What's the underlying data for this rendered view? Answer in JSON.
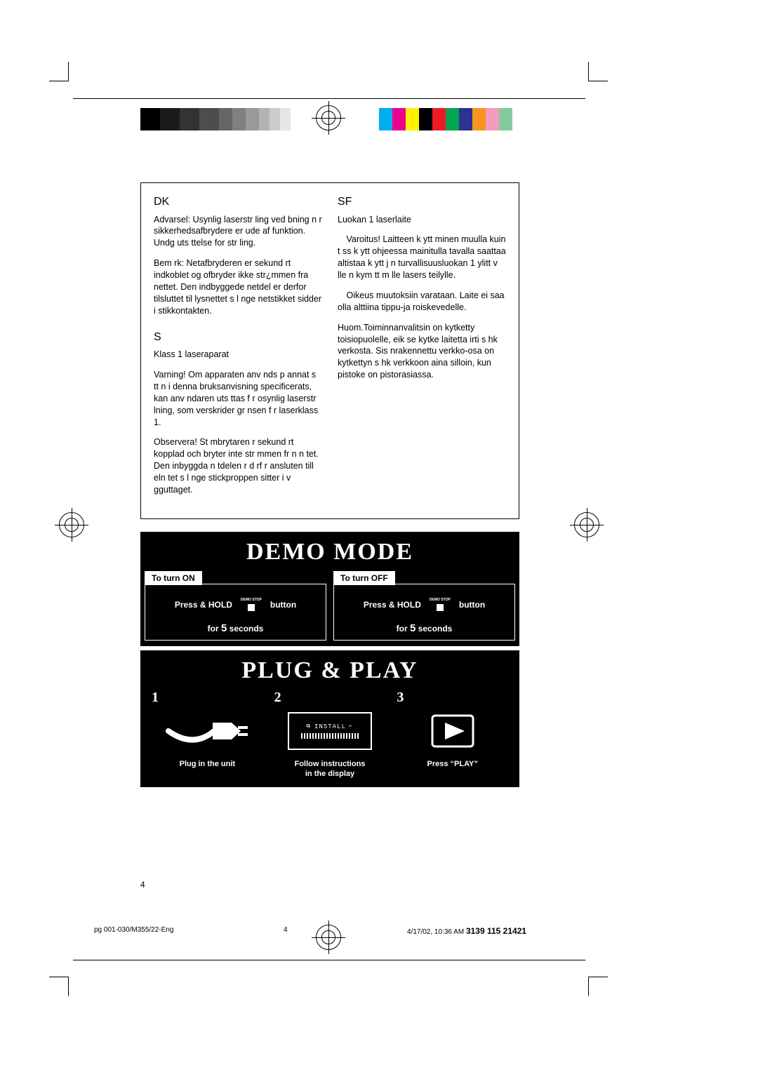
{
  "colorBars": {
    "gray": [
      "#000000",
      "#1a1a1a",
      "#333333",
      "#4d4d4d",
      "#666666",
      "#808080",
      "#999999",
      "#b3b3b3",
      "#cccccc",
      "#e6e6e6"
    ],
    "gray_widths": [
      28,
      28,
      28,
      28,
      19,
      19,
      19,
      15,
      15,
      15
    ],
    "color": [
      "#00aeef",
      "#ec008c",
      "#fff200",
      "#000000",
      "#ed1c24",
      "#00a651",
      "#2e3192",
      "#f7941d",
      "#f49ac1",
      "#82ca9c"
    ],
    "color_widths": [
      19,
      19,
      19,
      19,
      19,
      19,
      19,
      19,
      19,
      19
    ]
  },
  "warnings": {
    "dk": {
      "heading": "DK",
      "p1": "Advarsel: Usynlig laserstr ling ved  bning n r sikkerhedsafbrydere er ude af funktion. Undg  uts ttelse for str ling.",
      "p2": "Bem rk: Netafbryderen er sekund rt indkoblet og ofbryder ikke str¿mmen fra nettet.  Den indbyggede netdel er derfor tilsluttet til lysnettet s  l nge netstikket sidder i stikkontakten."
    },
    "s": {
      "heading": "S",
      "p1": "Klass 1 laseraparat",
      "p2": "Varning! Om apparaten anv nds p  annat s tt  n i denna bruksanvisning specificerats, kan anv ndaren uts ttas f r osynlig laserstr lning, som  verskrider gr nsen f r laserklass 1.",
      "p3": "Observera! St mbrytaren  r sekund rt kopplad och bryter inte str mmen fr n n tet.  Den inbyggda n tdelen  r d rf r ansluten till eln tet s  l nge stickproppen sitter i v gguttaget."
    },
    "sf": {
      "heading": "SF",
      "p1": "Luokan 1 laserlaite",
      "p2": " Varoitus! Laitteen k ytt minen muulla kuin t ss  k ytt ohjeessa mainitulla tavalla saattaa altistaa k ytt j n turvallisuusluokan 1 ylitt v lle n kym tt m lle lasers teilylle.",
      "p3": " Oikeus muutoksiin varataan.  Laite ei saa olla alttiina tippu-ja roiskevedelle.",
      "p4": "Huom.Toiminnanvalitsin on kytketty toisiopuolelle, eik  se kytke laitetta irti s hk verkosta.  Sis  nrakennettu verkko-osa on kytkettyn  s hk verkkoon aina silloin, kun pistoke on pistorasiassa."
    }
  },
  "demo": {
    "title": "Demo Mode",
    "on": {
      "header": "To turn ON",
      "press": "Press & HOLD",
      "btn_top": "DEMO STOP",
      "button_word": "button",
      "for_word": "for",
      "sec_num": "5",
      "sec_word": "seconds"
    },
    "off": {
      "header": "To turn OFF",
      "press": "Press & HOLD",
      "btn_top": "DEMO STOP",
      "button_word": "button",
      "for_word": "for",
      "sec_num": "5",
      "sec_word": "seconds"
    }
  },
  "plug": {
    "title": "Plug & Play",
    "steps": {
      "n1": "1",
      "n2": "2",
      "n3": "3",
      "c1": "Plug in the unit",
      "c2a": "Follow instructions",
      "c2b": "in the display",
      "c3": "Press “PLAY”",
      "lcd_text": "INSTALL"
    }
  },
  "footer": {
    "page": "4",
    "left": "pg 001-030/M355/22-Eng",
    "mid": "4",
    "right_time": "4/17/02, 10:36 AM",
    "right_code": "3139 115 21421"
  }
}
